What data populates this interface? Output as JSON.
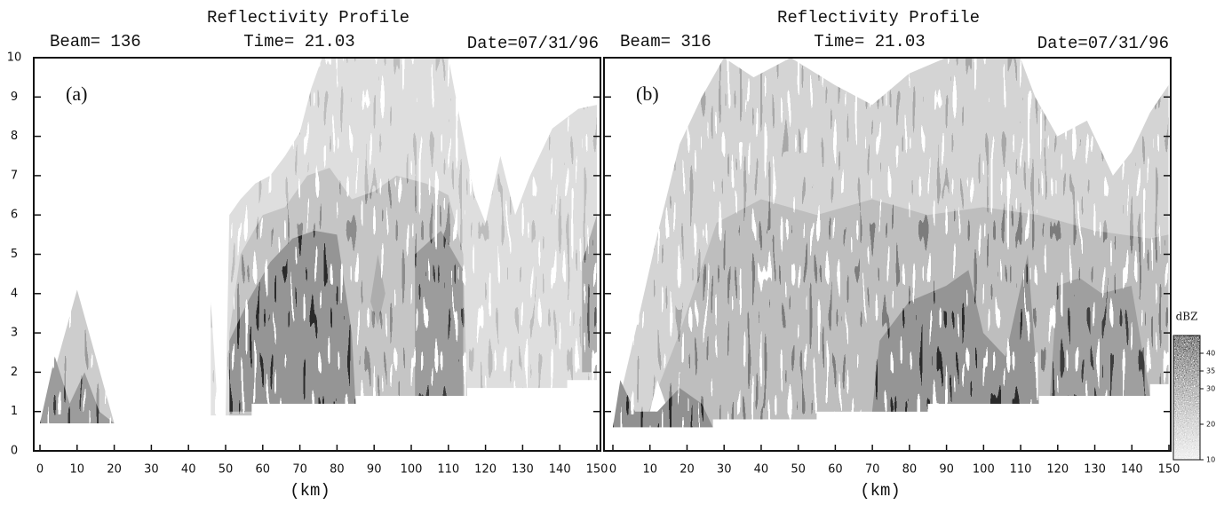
{
  "chart_data": [
    {
      "type": "heatmap",
      "title": "Reflectivity Profile",
      "beam": "Beam= 136",
      "time": "Time= 21.03",
      "date": "Date=07/31/96",
      "panel_label": "(a)",
      "xlabel": "(km)",
      "xlim": [
        0,
        150
      ],
      "ylim": [
        0,
        10
      ],
      "xticks": [
        0,
        10,
        20,
        30,
        40,
        50,
        60,
        70,
        80,
        90,
        100,
        110,
        120,
        130,
        140,
        150
      ],
      "yticks": [
        0,
        1,
        2,
        3,
        4,
        5,
        6,
        7,
        8,
        9,
        10
      ],
      "ytick_labels_shown": true
    },
    {
      "type": "heatmap",
      "title": "Reflectivity Profile",
      "beam": "Beam= 316",
      "time": "Time= 21.03",
      "date": "Date=07/31/96",
      "panel_label": "(b)",
      "xlabel": "(km)",
      "xlim": [
        0,
        150
      ],
      "ylim": [
        0,
        10
      ],
      "xticks": [
        0,
        10,
        20,
        30,
        40,
        50,
        60,
        70,
        80,
        90,
        100,
        110,
        120,
        130,
        140,
        150
      ],
      "yticks": [
        0,
        1,
        2,
        3,
        4,
        5,
        6,
        7,
        8,
        9,
        10
      ],
      "ytick_labels_shown": false,
      "colorbar_label": "dBZ",
      "colorbar_lim": [
        10,
        45
      ],
      "colorbar_ticks": [
        10,
        20,
        30,
        35,
        40
      ]
    }
  ]
}
